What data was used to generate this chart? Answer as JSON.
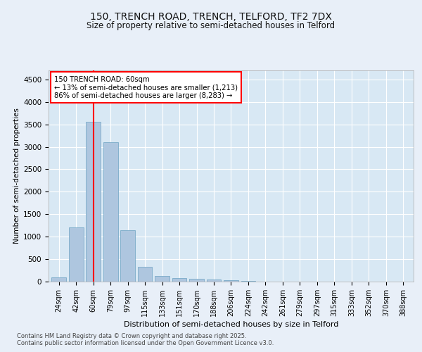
{
  "title_line1": "150, TRENCH ROAD, TRENCH, TELFORD, TF2 7DX",
  "title_line2": "Size of property relative to semi-detached houses in Telford",
  "xlabel": "Distribution of semi-detached houses by size in Telford",
  "ylabel": "Number of semi-detached properties",
  "categories": [
    "24sqm",
    "42sqm",
    "60sqm",
    "79sqm",
    "97sqm",
    "115sqm",
    "133sqm",
    "151sqm",
    "170sqm",
    "188sqm",
    "206sqm",
    "224sqm",
    "242sqm",
    "261sqm",
    "279sqm",
    "297sqm",
    "315sqm",
    "333sqm",
    "352sqm",
    "370sqm",
    "388sqm"
  ],
  "values": [
    100,
    1200,
    3550,
    3100,
    1150,
    330,
    130,
    80,
    55,
    50,
    30,
    10,
    5,
    3,
    2,
    1,
    1,
    0,
    0,
    0,
    0
  ],
  "bar_color": "#aec6df",
  "bar_edge_color": "#7aaac8",
  "red_line_index": 2,
  "annotation_title": "150 TRENCH ROAD: 60sqm",
  "annotation_line1": "← 13% of semi-detached houses are smaller (1,213)",
  "annotation_line2": "86% of semi-detached houses are larger (8,283) →",
  "ylim": [
    0,
    4700
  ],
  "yticks": [
    0,
    500,
    1000,
    1500,
    2000,
    2500,
    3000,
    3500,
    4000,
    4500
  ],
  "background_color": "#e8eff8",
  "plot_bg_color": "#d8e8f4",
  "footer_line1": "Contains HM Land Registry data © Crown copyright and database right 2025.",
  "footer_line2": "Contains public sector information licensed under the Open Government Licence v3.0."
}
